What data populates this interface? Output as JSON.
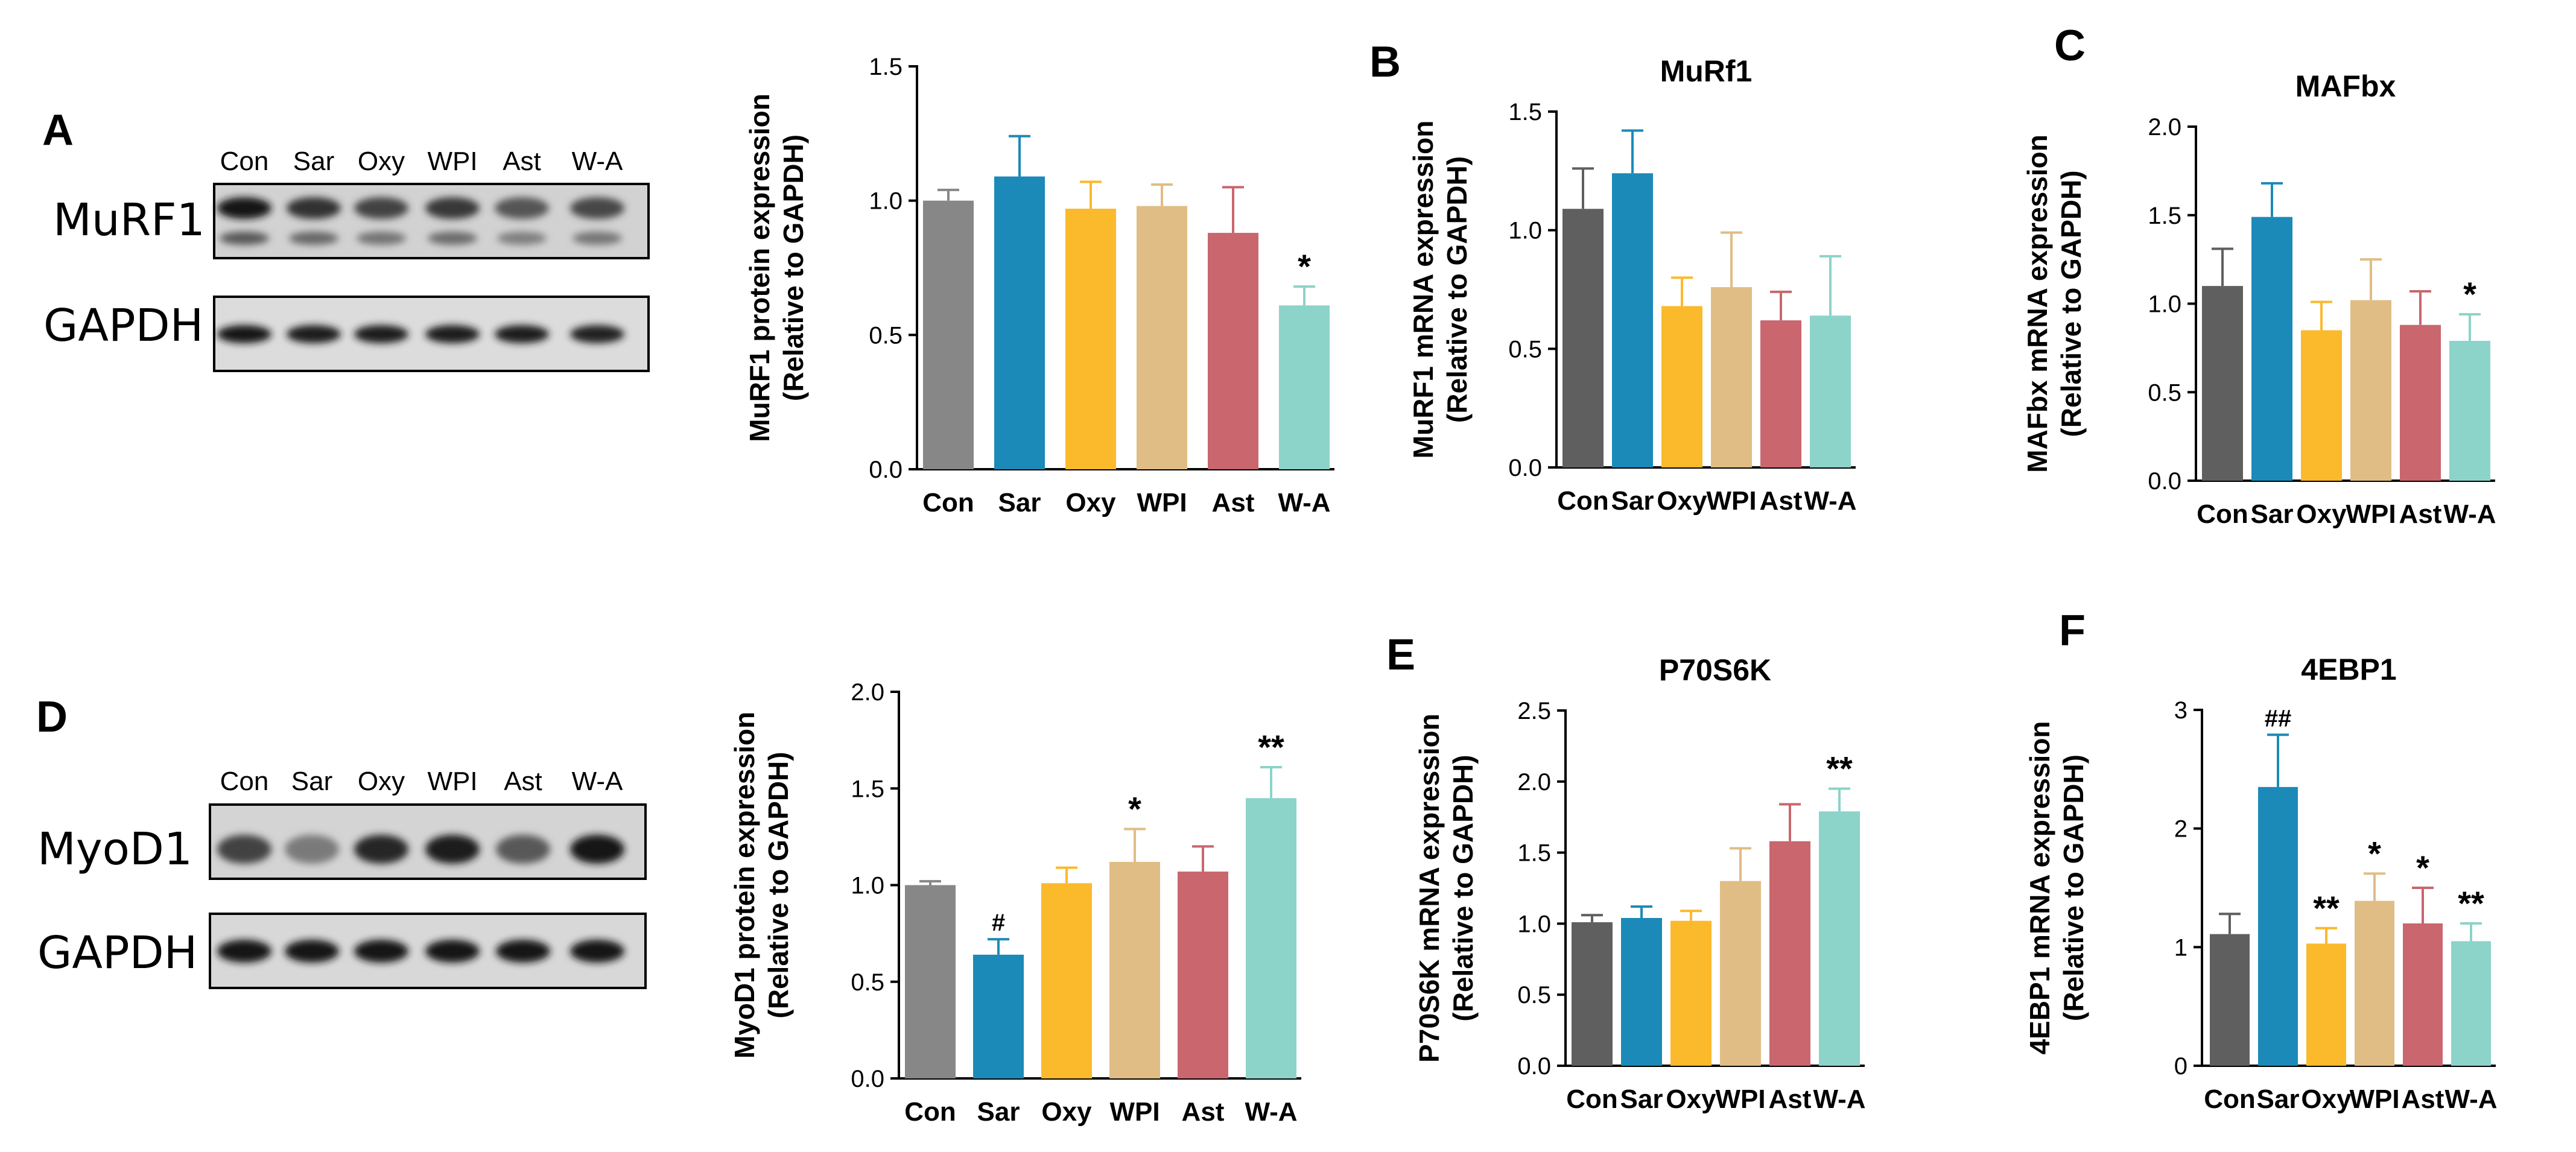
{
  "panel_letters": [
    "A",
    "B",
    "C",
    "D",
    "E",
    "F"
  ],
  "colors": {
    "bars_protein": [
      "#878787",
      "#1b8ab8",
      "#fbb92c",
      "#e0bd84",
      "#c9666e",
      "#8cd3c9"
    ],
    "bars_mrna": [
      "#5f5f5f",
      "#1b8ab8",
      "#fbb92c",
      "#e0bd84",
      "#c9666e",
      "#8cd3c9"
    ],
    "axis": "#000000"
  },
  "blots": [
    {
      "panel": "A",
      "lanes": [
        "Con",
        "Sar",
        "Oxy",
        "WPI",
        "Ast",
        "W-A"
      ],
      "rows": [
        {
          "label": "MuRF1",
          "intensity": [
            0.95,
            0.82,
            0.72,
            0.78,
            0.62,
            0.7
          ]
        },
        {
          "label": "GAPDH",
          "intensity": [
            0.95,
            0.92,
            0.92,
            0.93,
            0.92,
            0.9
          ]
        }
      ]
    },
    {
      "panel": "D",
      "lanes": [
        "Con",
        "Sar",
        "Oxy",
        "WPI",
        "Ast",
        "W-A"
      ],
      "rows": [
        {
          "label": "MyoD1",
          "intensity": [
            0.72,
            0.42,
            0.88,
            0.92,
            0.6,
            0.95
          ]
        },
        {
          "label": "GAPDH",
          "intensity": [
            0.95,
            0.95,
            0.95,
            0.95,
            0.95,
            0.95
          ]
        }
      ]
    }
  ],
  "chart_data": [
    {
      "panel": "A",
      "type": "bar",
      "title": "",
      "categories": [
        "Con",
        "Sar",
        "Oxy",
        "WPI",
        "Ast",
        "W-A"
      ],
      "values": [
        1.0,
        1.09,
        0.97,
        0.98,
        0.88,
        0.61
      ],
      "errors": [
        0.04,
        0.15,
        0.1,
        0.08,
        0.17,
        0.07
      ],
      "annotations": [
        "",
        "",
        "",
        "",
        "",
        "*"
      ],
      "ylabel_lines": [
        "MuRF1 protein expression",
        "(Relative to GAPDH)"
      ],
      "xlabel": "",
      "ylim": [
        0,
        1.5
      ],
      "yticks": [
        "0.0",
        "0.5",
        "1.0",
        "1.5"
      ],
      "palette": "protein"
    },
    {
      "panel": "B",
      "type": "bar",
      "title": "MuRf1",
      "categories": [
        "Con",
        "Sar",
        "Oxy",
        "WPI",
        "Ast",
        "W-A"
      ],
      "values": [
        1.09,
        1.24,
        0.68,
        0.76,
        0.62,
        0.64
      ],
      "errors": [
        0.17,
        0.18,
        0.12,
        0.23,
        0.12,
        0.25
      ],
      "annotations": [
        "",
        "",
        "",
        "",
        "",
        ""
      ],
      "ylabel_lines": [
        "MuRF1 mRNA expression",
        "(Relative to GAPDH)"
      ],
      "xlabel": "",
      "ylim": [
        0,
        1.5
      ],
      "yticks": [
        "0.0",
        "0.5",
        "1.0",
        "1.5"
      ],
      "palette": "mrna"
    },
    {
      "panel": "C",
      "type": "bar",
      "title": "MAFbx",
      "categories": [
        "Con",
        "Sar",
        "Oxy",
        "WPI",
        "Ast",
        "W-A"
      ],
      "values": [
        1.1,
        1.49,
        0.85,
        1.02,
        0.88,
        0.79
      ],
      "errors": [
        0.21,
        0.19,
        0.16,
        0.23,
        0.19,
        0.15
      ],
      "annotations": [
        "",
        "",
        "",
        "",
        "",
        "*"
      ],
      "ylabel_lines": [
        "MAFbx mRNA expression",
        "(Relative to GAPDH)"
      ],
      "xlabel": "",
      "ylim": [
        0,
        2.0
      ],
      "yticks": [
        "0.0",
        "0.5",
        "1.0",
        "1.5",
        "2.0"
      ],
      "palette": "mrna"
    },
    {
      "panel": "D",
      "type": "bar",
      "title": "",
      "categories": [
        "Con",
        "Sar",
        "Oxy",
        "WPI",
        "Ast",
        "W-A"
      ],
      "values": [
        1.0,
        0.64,
        1.01,
        1.12,
        1.07,
        1.45
      ],
      "errors": [
        0.02,
        0.08,
        0.08,
        0.17,
        0.13,
        0.16
      ],
      "annotations": [
        "",
        "#",
        "",
        "*",
        "",
        "**"
      ],
      "ylabel_lines": [
        "MyoD1 protein expression",
        "(Relative to GAPDH)"
      ],
      "xlabel": "",
      "ylim": [
        0,
        2.0
      ],
      "yticks": [
        "0.0",
        "0.5",
        "1.0",
        "1.5",
        "2.0"
      ],
      "palette": "protein"
    },
    {
      "panel": "E",
      "type": "bar",
      "title": "P70S6K",
      "categories": [
        "Con",
        "Sar",
        "Oxy",
        "WPI",
        "Ast",
        "W-A"
      ],
      "values": [
        1.01,
        1.04,
        1.02,
        1.3,
        1.58,
        1.79
      ],
      "errors": [
        0.05,
        0.08,
        0.07,
        0.23,
        0.26,
        0.16
      ],
      "annotations": [
        "",
        "",
        "",
        "",
        "",
        "**"
      ],
      "ylabel_lines": [
        "P70S6K mRNA expression",
        "(Relative to GAPDH)"
      ],
      "xlabel": "",
      "ylim": [
        0,
        2.5
      ],
      "yticks": [
        "0.0",
        "0.5",
        "1.0",
        "1.5",
        "2.0",
        "2.5"
      ],
      "palette": "mrna"
    },
    {
      "panel": "F",
      "type": "bar",
      "title": "4EBP1",
      "categories": [
        "Con",
        "Sar",
        "Oxy",
        "WPI",
        "Ast",
        "W-A"
      ],
      "values": [
        1.11,
        2.35,
        1.03,
        1.39,
        1.2,
        1.05
      ],
      "errors": [
        0.17,
        0.44,
        0.13,
        0.23,
        0.3,
        0.15
      ],
      "annotations": [
        "",
        "##",
        "**",
        "*",
        "*",
        "**"
      ],
      "ylabel_lines": [
        "4EBP1 mRNA expression",
        "(Relative to GAPDH)"
      ],
      "xlabel": "",
      "ylim": [
        0,
        3
      ],
      "yticks": [
        "0",
        "1",
        "2",
        "3"
      ],
      "palette": "mrna"
    }
  ]
}
